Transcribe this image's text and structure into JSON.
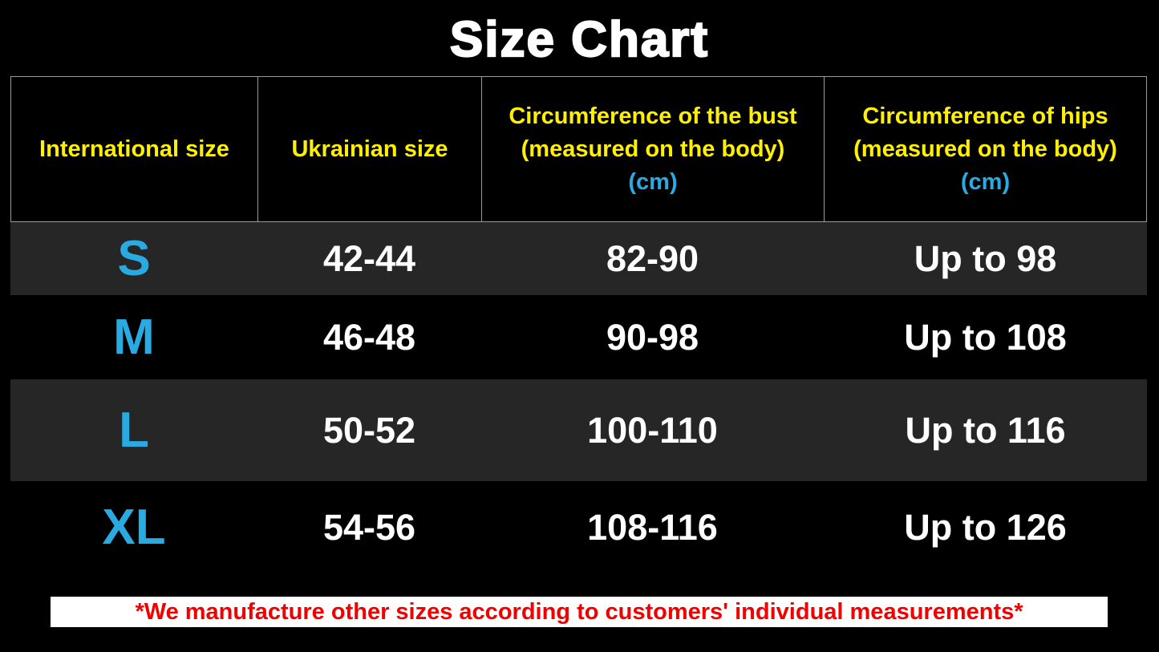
{
  "title": "Size Chart",
  "colors": {
    "background": "#000000",
    "header_text_yellow": "#ffef00",
    "unit_cyan": "#29abe2",
    "size_letter_cyan": "#29abe2",
    "value_white": "#ffffff",
    "stripe_gray": "#262626",
    "header_border_gray": "#9b9b9b",
    "footer_text_red": "#f20000",
    "footer_background": "#ffffff"
  },
  "table": {
    "columns": [
      {
        "label": "International size",
        "unit": ""
      },
      {
        "label": "Ukrainian size",
        "unit": ""
      },
      {
        "label": "Circumference of the bust (measured on the body)",
        "unit": "(cm)"
      },
      {
        "label": "Circumference of hips (measured on the body)",
        "unit": "(cm)"
      }
    ],
    "rows": [
      {
        "international": "S",
        "ukrainian": "42-44",
        "bust": "82-90",
        "hips": "Up to 98"
      },
      {
        "international": "M",
        "ukrainian": "46-48",
        "bust": "90-98",
        "hips": "Up to 108"
      },
      {
        "international": "L",
        "ukrainian": "50-52",
        "bust": "100-110",
        "hips": "Up to 116"
      },
      {
        "international": "XL",
        "ukrainian": "54-56",
        "bust": "108-116",
        "hips": "Up to 126"
      }
    ]
  },
  "footer": {
    "note": "*We manufacture other sizes according to customers' individual measurements*"
  },
  "chart_data": {
    "type": "table",
    "title": "Size Chart",
    "columns": [
      "International size",
      "Ukrainian size",
      "Circumference of the bust (measured on the body) (cm)",
      "Circumference of hips (measured on the body) (cm)"
    ],
    "rows": [
      [
        "S",
        "42-44",
        "82-90",
        "Up to 98"
      ],
      [
        "M",
        "46-48",
        "90-98",
        "Up to 108"
      ],
      [
        "L",
        "50-52",
        "100-110",
        "Up to 116"
      ],
      [
        "XL",
        "54-56",
        "108-116",
        "Up to 126"
      ]
    ],
    "annotations": [
      "*We manufacture other sizes according to customers' individual measurements*"
    ],
    "layout_hints": {
      "striped_rows": [
        "S",
        "L"
      ],
      "header_units_color": "#29abe2",
      "header_text_color": "#ffef00"
    }
  }
}
